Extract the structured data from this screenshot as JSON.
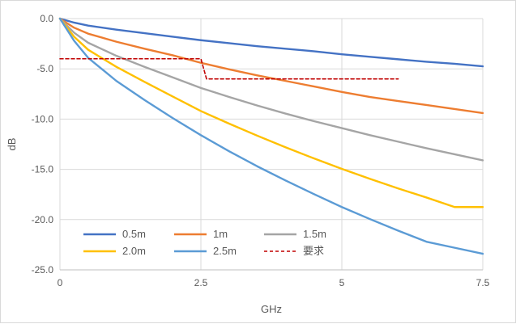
{
  "chart_data": {
    "type": "line",
    "title": "",
    "xlabel": "GHz",
    "ylabel": "dB",
    "xlim": [
      0,
      7.5
    ],
    "ylim": [
      -25,
      0
    ],
    "x_ticks": [
      0,
      2.5,
      5,
      7.5
    ],
    "x_tick_labels": [
      "0",
      "2.5",
      "5",
      "7.5"
    ],
    "y_ticks": [
      0,
      -5,
      -10,
      -15,
      -20,
      -25
    ],
    "y_tick_labels": [
      "0.0",
      "-5.0",
      "-10.0",
      "-15.0",
      "-20.0",
      "-25.0"
    ],
    "grid": true,
    "legend_position": "bottom-left-inside",
    "series": [
      {
        "name": "0.5m",
        "color": "#4472C4",
        "style": "solid",
        "points": [
          [
            0,
            0
          ],
          [
            0.25,
            -0.4
          ],
          [
            0.5,
            -0.7
          ],
          [
            1,
            -1.1
          ],
          [
            1.5,
            -1.45
          ],
          [
            2,
            -1.8
          ],
          [
            2.5,
            -2.15
          ],
          [
            3,
            -2.45
          ],
          [
            3.5,
            -2.75
          ],
          [
            4,
            -3.0
          ],
          [
            4.5,
            -3.25
          ],
          [
            5,
            -3.55
          ],
          [
            5.5,
            -3.8
          ],
          [
            6,
            -4.05
          ],
          [
            6.5,
            -4.3
          ],
          [
            7,
            -4.5
          ],
          [
            7.5,
            -4.75
          ]
        ]
      },
      {
        "name": "1m",
        "color": "#ED7D31",
        "style": "solid",
        "points": [
          [
            0,
            0
          ],
          [
            0.25,
            -0.9
          ],
          [
            0.5,
            -1.5
          ],
          [
            1,
            -2.3
          ],
          [
            1.5,
            -3.0
          ],
          [
            2,
            -3.65
          ],
          [
            2.5,
            -4.4
          ],
          [
            3,
            -5.05
          ],
          [
            3.5,
            -5.65
          ],
          [
            4,
            -6.2
          ],
          [
            4.5,
            -6.75
          ],
          [
            5,
            -7.3
          ],
          [
            5.5,
            -7.8
          ],
          [
            6,
            -8.2
          ],
          [
            6.5,
            -8.6
          ],
          [
            7,
            -9.0
          ],
          [
            7.5,
            -9.4
          ]
        ]
      },
      {
        "name": "1.5m",
        "color": "#A5A5A5",
        "style": "solid",
        "points": [
          [
            0,
            0
          ],
          [
            0.25,
            -1.4
          ],
          [
            0.5,
            -2.4
          ],
          [
            1,
            -3.7
          ],
          [
            1.5,
            -4.8
          ],
          [
            2,
            -5.85
          ],
          [
            2.5,
            -6.9
          ],
          [
            3,
            -7.8
          ],
          [
            3.5,
            -8.65
          ],
          [
            4,
            -9.45
          ],
          [
            4.5,
            -10.2
          ],
          [
            5,
            -10.9
          ],
          [
            5.5,
            -11.6
          ],
          [
            6,
            -12.25
          ],
          [
            6.5,
            -12.9
          ],
          [
            7,
            -13.5
          ],
          [
            7.5,
            -14.1
          ]
        ]
      },
      {
        "name": "2.0m",
        "color": "#FFC000",
        "style": "solid",
        "points": [
          [
            0,
            0
          ],
          [
            0.25,
            -1.8
          ],
          [
            0.5,
            -3.1
          ],
          [
            1,
            -4.8
          ],
          [
            1.5,
            -6.3
          ],
          [
            2,
            -7.75
          ],
          [
            2.5,
            -9.2
          ],
          [
            3,
            -10.45
          ],
          [
            3.5,
            -11.65
          ],
          [
            4,
            -12.8
          ],
          [
            4.5,
            -13.9
          ],
          [
            5,
            -14.95
          ],
          [
            5.5,
            -15.95
          ],
          [
            6,
            -16.9
          ],
          [
            6.5,
            -17.8
          ],
          [
            7,
            -18.75
          ],
          [
            7.5,
            -18.75
          ]
        ]
      },
      {
        "name": "2.5m",
        "color": "#5B9BD5",
        "style": "solid",
        "points": [
          [
            0,
            0
          ],
          [
            0.25,
            -2.2
          ],
          [
            0.5,
            -3.9
          ],
          [
            1,
            -6.2
          ],
          [
            1.5,
            -8.1
          ],
          [
            2,
            -9.9
          ],
          [
            2.5,
            -11.6
          ],
          [
            3,
            -13.2
          ],
          [
            3.5,
            -14.7
          ],
          [
            4,
            -16.1
          ],
          [
            4.5,
            -17.45
          ],
          [
            5,
            -18.75
          ],
          [
            5.5,
            -19.95
          ],
          [
            6,
            -21.1
          ],
          [
            6.5,
            -22.2
          ],
          [
            7,
            -22.8
          ],
          [
            7.5,
            -23.4
          ]
        ]
      },
      {
        "name": "要求",
        "color": "#C00000",
        "style": "dashed",
        "points": [
          [
            0,
            -4
          ],
          [
            2.5,
            -4
          ],
          [
            2.6,
            -6
          ],
          [
            6,
            -6
          ]
        ]
      }
    ]
  }
}
